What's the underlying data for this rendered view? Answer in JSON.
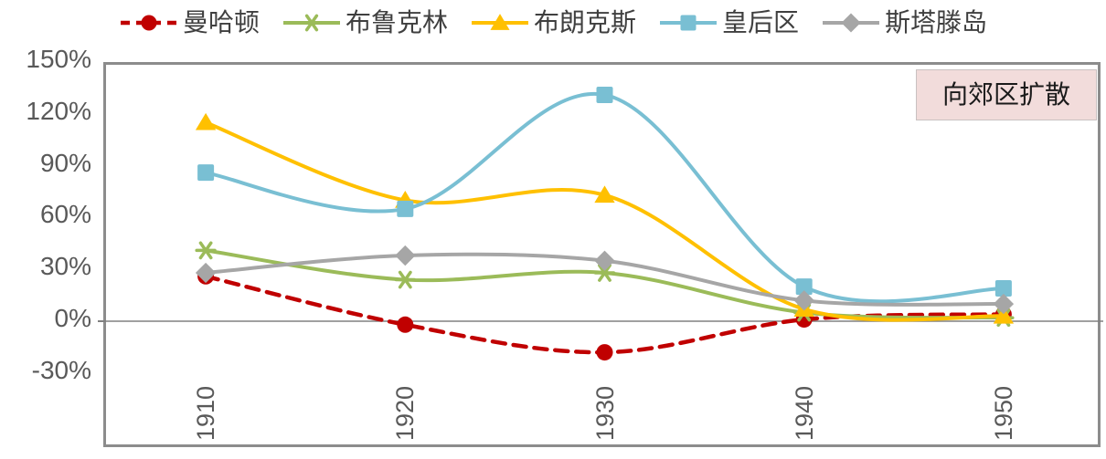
{
  "annotation": {
    "text": "向郊区扩散",
    "bg_color": "#f2dcdb"
  },
  "axis_colors": {
    "label": "#595959",
    "border": "#8c8c8c",
    "zero_line": "#808080"
  },
  "chart_data": {
    "type": "line",
    "smooth": true,
    "grid": false,
    "legend_position": "top",
    "x": [
      1910,
      1920,
      1930,
      1940,
      1950
    ],
    "x_labels": [
      "1910",
      "1920",
      "1930",
      "1940",
      "1950"
    ],
    "y_ticks": [
      "150%",
      "120%",
      "90%",
      "60%",
      "30%",
      "0%",
      "-30%"
    ],
    "y_tick_values": [
      150,
      120,
      90,
      60,
      30,
      0,
      -30
    ],
    "ylim": [
      -75,
      150
    ],
    "y_unit": "percent",
    "series": [
      {
        "name": "曼哈顿",
        "color": "#c00000",
        "marker": "circle",
        "dashed": true,
        "values": [
          26,
          -2,
          -18,
          1,
          4
        ]
      },
      {
        "name": "布鲁克林",
        "color": "#9bbb59",
        "marker": "star",
        "dashed": false,
        "values": [
          41,
          24,
          28,
          5,
          2
        ]
      },
      {
        "name": "布朗克斯",
        "color": "#ffc000",
        "marker": "triangle",
        "dashed": false,
        "values": [
          115,
          70,
          73,
          7,
          3
        ]
      },
      {
        "name": "皇后区",
        "color": "#79bfd3",
        "marker": "square",
        "dashed": false,
        "values": [
          86,
          65,
          131,
          20,
          19
        ]
      },
      {
        "name": "斯塔滕岛",
        "color": "#a6a6a6",
        "marker": "diamond",
        "dashed": false,
        "values": [
          28,
          38,
          35,
          12,
          10
        ]
      }
    ]
  }
}
